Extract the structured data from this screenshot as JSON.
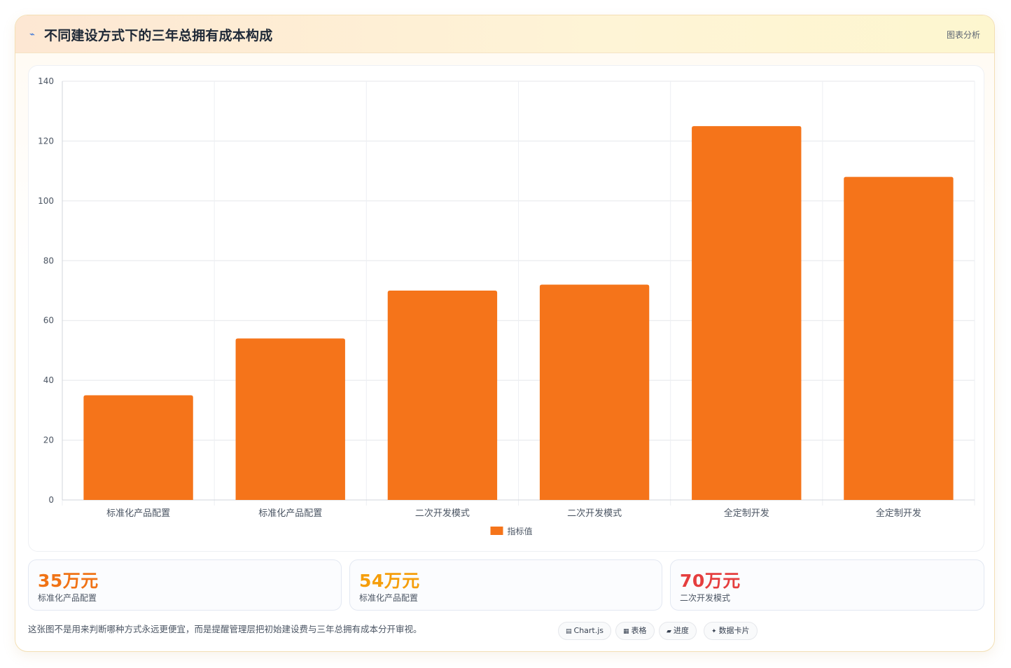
{
  "header": {
    "icon": "chart-line-icon",
    "title": "不同建设方式下的三年总拥有成本构成",
    "tag": "图表分析"
  },
  "chart_data": {
    "type": "bar",
    "categories": [
      "标准化产品配置",
      "标准化产品配置",
      "二次开发模式",
      "二次开发模式",
      "全定制开发",
      "全定制开发"
    ],
    "series": [
      {
        "name": "指标值",
        "values": [
          35,
          54,
          70,
          72,
          125,
          108
        ]
      }
    ],
    "ylim": [
      0,
      140
    ],
    "yticks": [
      0,
      20,
      40,
      60,
      80,
      100,
      120,
      140
    ],
    "grid": true,
    "legend": "bottom",
    "bar_color": "#f5741a"
  },
  "stats": [
    {
      "value": "35万元",
      "label": "标准化产品配置",
      "color": "#f07316"
    },
    {
      "value": "54万元",
      "label": "标准化产品配置",
      "color": "#f59e0b"
    },
    {
      "value": "70万元",
      "label": "二次开发模式",
      "color": "#e53e3e"
    }
  ],
  "footer": {
    "note": "这张图不是用来判断哪种方式永远更便宜，而是提醒管理层把初始建设费与三年总拥有成本分开审视。",
    "pills": [
      {
        "icon": "chart-icon",
        "glyph": "▤",
        "label": "Chart.js"
      },
      {
        "icon": "table-icon",
        "glyph": "▦",
        "label": "表格"
      },
      {
        "icon": "progress-icon",
        "glyph": "▰",
        "label": "进度"
      },
      {
        "icon": "sparkle-icon",
        "glyph": "✦",
        "label": "数据卡片"
      }
    ]
  }
}
